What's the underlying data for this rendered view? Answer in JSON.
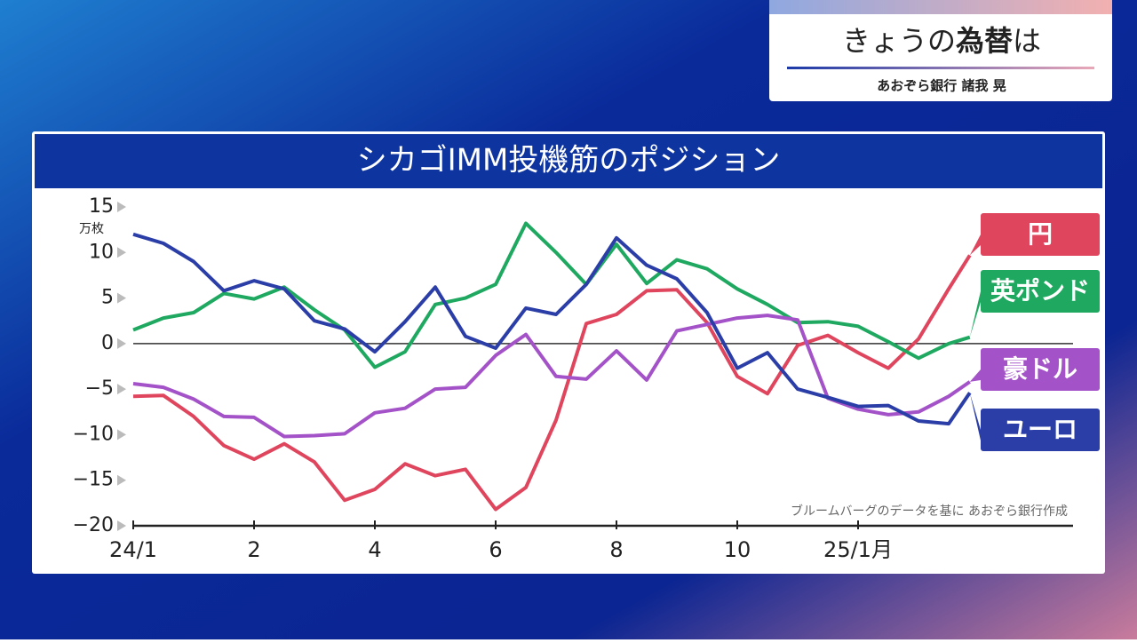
{
  "header": {
    "title_plain": "きょうの",
    "title_bold": "為替",
    "title_end": "は",
    "subtitle": "あおぞら銀行 諸我 晃"
  },
  "chart_data": {
    "type": "line",
    "title": "シカゴIMM投機筋のポジション",
    "y_unit": "万枚",
    "source": "ブルームバーグのデータを基に あおぞら銀行作成",
    "x": [
      0,
      0.5,
      1,
      1.5,
      2,
      2.5,
      3,
      3.5,
      4,
      4.5,
      5,
      5.5,
      6,
      6.5,
      7,
      7.5,
      8,
      8.5,
      9,
      9.5,
      10,
      10.5,
      11,
      11.5,
      12,
      12.5,
      13,
      13.5,
      13.85
    ],
    "xlim": [
      0,
      15.5
    ],
    "xticks": [
      {
        "value": 0,
        "label": "24/1"
      },
      2,
      4,
      6,
      8,
      10,
      {
        "value": 12,
        "label": "25/1月"
      }
    ],
    "ylim": [
      -20,
      15
    ],
    "yticks": [
      {
        "value": -20,
        "label": "−20"
      },
      {
        "value": -15,
        "label": "−15"
      },
      {
        "value": -10,
        "label": "−10"
      },
      {
        "value": -5,
        "label": "−5"
      },
      0,
      5,
      10,
      15
    ],
    "series": [
      {
        "name": "円",
        "color": "#e0455e",
        "values": [
          -5.8,
          -5.7,
          -8,
          -11.2,
          -12.7,
          -11,
          -13,
          -17.2,
          -16,
          -13.2,
          -14.5,
          -13.8,
          -18.2,
          -15.8,
          -8.4,
          2.2,
          3.2,
          5.8,
          5.9,
          2.3,
          -3.6,
          -5.5,
          -0.2,
          0.9,
          -1,
          -2.7,
          0.5,
          6,
          9.7
        ]
      },
      {
        "name": "英ポンド",
        "color": "#1ea860",
        "values": [
          1.5,
          2.8,
          3.4,
          5.5,
          4.9,
          6.2,
          3.7,
          1.5,
          -2.6,
          -0.9,
          4.3,
          5,
          6.5,
          13.2,
          10,
          6.5,
          10.9,
          6.6,
          9.2,
          8.2,
          6,
          4.3,
          2.3,
          2.4,
          1.9,
          0.2,
          -1.6,
          0,
          0.7
        ]
      },
      {
        "name": "豪ドル",
        "color": "#a452c8",
        "values": [
          -4.4,
          -4.8,
          -6.1,
          -8,
          -8.1,
          -10.2,
          -10.1,
          -9.9,
          -7.6,
          -7.1,
          -5,
          -4.8,
          -1.3,
          1,
          -3.6,
          -3.9,
          -0.8,
          -4,
          1.4,
          2.1,
          2.8,
          3.1,
          2.6,
          -6,
          -7.2,
          -7.8,
          -7.5,
          -5.8,
          -4.2
        ]
      },
      {
        "name": "ユーロ",
        "color": "#2b3ea8",
        "values": [
          12,
          11,
          9,
          5.8,
          6.9,
          6,
          2.5,
          1.6,
          -0.9,
          2.4,
          6.2,
          0.8,
          -0.5,
          3.9,
          3.2,
          6.5,
          11.6,
          8.6,
          7.1,
          3.4,
          -2.7,
          -1,
          -5,
          -5.9,
          -6.9,
          -6.8,
          -8.5,
          -8.8,
          -5.4
        ]
      }
    ]
  }
}
